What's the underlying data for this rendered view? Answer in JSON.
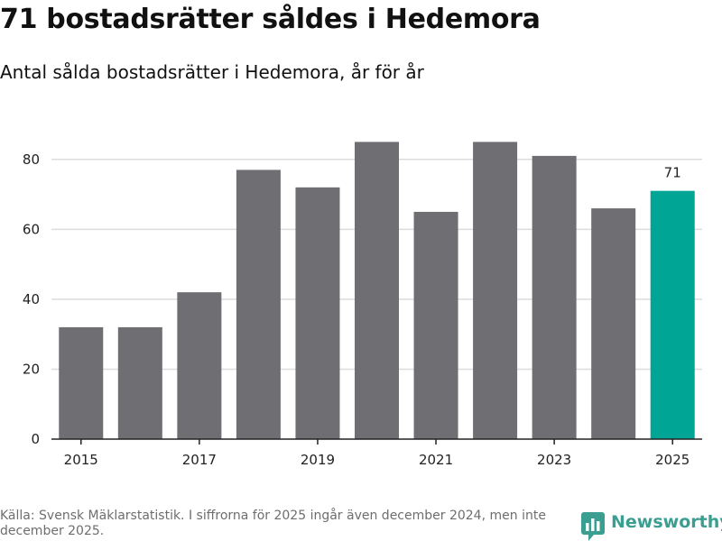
{
  "title": "71 bostadsrätter såldes i Hedemora",
  "subtitle": "Antal sålda bostadsrätter i Hedemora, år för år",
  "source": "Källa: Svensk Mäklarstatistik. I siffrorna för 2025 ingår även december 2024, men inte december 2025.",
  "brand": {
    "name": "Newsworthy",
    "icon": "newsworthy-logo-icon"
  },
  "colors": {
    "bar": "#6e6e73",
    "highlight": "#00a596",
    "grid": "#dcdcdc",
    "axis": "#222222",
    "brand": "#3a9e91"
  },
  "chart_data": {
    "type": "bar",
    "categories": [
      "2015",
      "2016",
      "2017",
      "2018",
      "2019",
      "2020",
      "2021",
      "2022",
      "2023",
      "2024",
      "2025"
    ],
    "values": [
      32,
      32,
      42,
      77,
      72,
      85,
      65,
      85,
      81,
      66,
      71
    ],
    "x_tick_labels": [
      "2015",
      "2017",
      "2019",
      "2021",
      "2023",
      "2025"
    ],
    "y_ticks": [
      0,
      20,
      40,
      60,
      80
    ],
    "ylim": [
      0,
      90
    ],
    "highlight": "2025",
    "data_labels": [
      {
        "category": "2025",
        "text": "71"
      }
    ],
    "grid": true,
    "xlabel": "",
    "ylabel": ""
  }
}
